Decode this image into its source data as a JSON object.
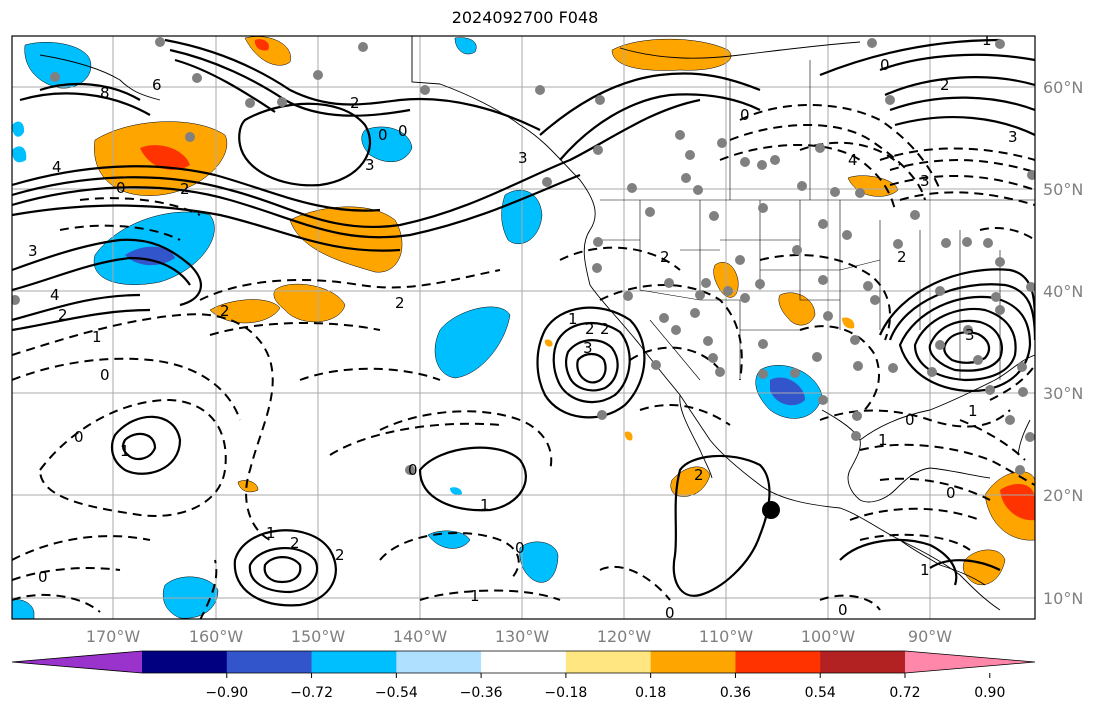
{
  "title": "2024092700 F048",
  "lat_labels": [
    "60°N",
    "50°N",
    "40°N",
    "30°N",
    "20°N",
    "10°N"
  ],
  "lon_labels": [
    "170°W",
    "160°W",
    "150°W",
    "140°W",
    "130°W",
    "120°W",
    "110°W",
    "100°W",
    "90°W"
  ],
  "colorbar": {
    "colors": [
      "#9933cc",
      "#000080",
      "#3355cc",
      "#00bfff",
      "#b0e0ff",
      "#ffffff",
      "#ffe680",
      "#ffa500",
      "#ff3300",
      "#b22222",
      "#ff88aa"
    ],
    "tick_labels": [
      "−0.90",
      "−0.72",
      "−0.54",
      "−0.36",
      "−0.18",
      "0.18",
      "0.36",
      "0.54",
      "0.72",
      "0.90"
    ]
  },
  "contour_labels": [
    "8",
    "6",
    "4",
    "3",
    "2",
    "0",
    "2",
    "4",
    "3",
    "0",
    "0",
    "2",
    "3",
    "2",
    "1",
    "0",
    "2",
    "2",
    "1",
    "2",
    "0",
    "1",
    "2",
    "3",
    "0",
    "1",
    "1",
    "2",
    "0",
    "1",
    "0",
    "0",
    "2",
    "0",
    "2",
    "1",
    "1",
    "0",
    "1",
    "0",
    "3",
    "4",
    "3",
    "0",
    "0",
    "2",
    "3",
    "2",
    "1"
  ]
}
